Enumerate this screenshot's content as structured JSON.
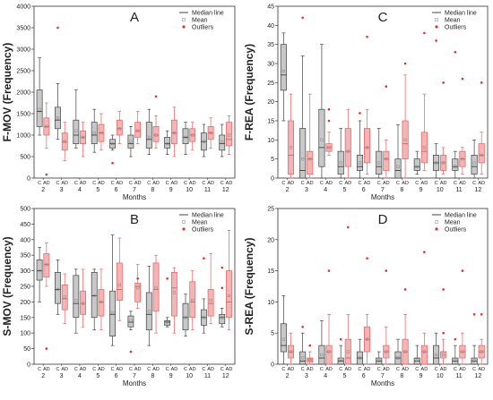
{
  "legend": {
    "median": "Median line",
    "mean": "Mean",
    "outliers": "Outliers"
  },
  "colors": {
    "control_fill": "#c8c8c8",
    "control_stroke": "#404040",
    "ad_fill": "#f2b4b4",
    "ad_stroke": "#e06060",
    "outlier": "#e03030"
  },
  "chart_data": [
    {
      "type": "boxplot",
      "title": "A",
      "ylabel": "F-MOV (Frequency)",
      "xlabel": "Months",
      "ylim": [
        0,
        4000
      ],
      "yticks": [
        0,
        500,
        1000,
        1500,
        2000,
        2500,
        3000,
        3500,
        4000
      ],
      "groups": [
        "C",
        "AD"
      ],
      "categories": [
        "2",
        "3",
        "4",
        "5",
        "6",
        "7",
        "8",
        "9",
        "10",
        "11",
        "12"
      ],
      "boxes": [
        [
          {
            "lw": 1000,
            "q1": 1200,
            "med": 1550,
            "q3": 2050,
            "hw": 2800,
            "mean": 1600
          },
          {
            "lw": 700,
            "q1": 1000,
            "med": 1200,
            "q3": 1400,
            "hw": 1750,
            "mean": 1200,
            "out": [
              80
            ]
          }
        ],
        [
          {
            "lw": 900,
            "q1": 1150,
            "med": 1350,
            "q3": 1650,
            "hw": 2200,
            "mean": 1400,
            "out": [
              3500
            ]
          },
          {
            "lw": 400,
            "q1": 650,
            "med": 850,
            "q3": 1050,
            "hw": 1300,
            "mean": 850
          }
        ],
        [
          {
            "lw": 700,
            "q1": 800,
            "med": 1000,
            "q3": 1350,
            "hw": 2050,
            "mean": 1100
          },
          {
            "lw": 500,
            "q1": 800,
            "med": 950,
            "q3": 1100,
            "hw": 1300,
            "mean": 950
          }
        ],
        [
          {
            "lw": 600,
            "q1": 800,
            "med": 1000,
            "q3": 1300,
            "hw": 1600,
            "mean": 1050
          },
          {
            "lw": 650,
            "q1": 850,
            "med": 1050,
            "q3": 1250,
            "hw": 1500,
            "mean": 1050
          }
        ],
        [
          {
            "lw": 650,
            "q1": 700,
            "med": 800,
            "q3": 900,
            "hw": 1000,
            "mean": 800,
            "out": [
              350
            ]
          },
          {
            "lw": 800,
            "q1": 1000,
            "med": 1150,
            "q3": 1350,
            "hw": 1550,
            "mean": 1150
          }
        ],
        [
          {
            "lw": 500,
            "q1": 700,
            "med": 800,
            "q3": 1000,
            "hw": 1200,
            "mean": 850
          },
          {
            "lw": 800,
            "q1": 950,
            "med": 1100,
            "q3": 1300,
            "hw": 1550,
            "mean": 1100
          }
        ],
        [
          {
            "lw": 550,
            "q1": 700,
            "med": 900,
            "q3": 1300,
            "hw": 1600,
            "mean": 950
          },
          {
            "lw": 700,
            "q1": 850,
            "med": 1000,
            "q3": 1200,
            "hw": 1450,
            "mean": 1000,
            "out": [
              1900
            ]
          }
        ],
        [
          {
            "lw": 550,
            "q1": 700,
            "med": 800,
            "q3": 950,
            "hw": 1100,
            "mean": 800
          },
          {
            "lw": 500,
            "q1": 800,
            "med": 1050,
            "q3": 1350,
            "hw": 1650,
            "mean": 1050
          }
        ],
        [
          {
            "lw": 550,
            "q1": 800,
            "med": 950,
            "q3": 1150,
            "hw": 1300,
            "mean": 950
          },
          {
            "lw": 650,
            "q1": 850,
            "med": 1000,
            "q3": 1150,
            "hw": 1300,
            "mean": 1000
          }
        ],
        [
          {
            "lw": 500,
            "q1": 650,
            "med": 850,
            "q3": 1050,
            "hw": 1250,
            "mean": 850
          },
          {
            "lw": 700,
            "q1": 900,
            "med": 1050,
            "q3": 1200,
            "hw": 1400,
            "mean": 1050
          }
        ],
        [
          {
            "lw": 500,
            "q1": 650,
            "med": 800,
            "q3": 1000,
            "hw": 1250,
            "mean": 850
          },
          {
            "lw": 550,
            "q1": 750,
            "med": 900,
            "q3": 1300,
            "hw": 1450,
            "mean": 1000
          }
        ]
      ]
    },
    {
      "type": "boxplot",
      "title": "C",
      "ylabel": "F-REA (Frequency)",
      "xlabel": "Months",
      "ylim": [
        0,
        45
      ],
      "yticks": [
        0,
        5,
        10,
        15,
        20,
        25,
        30,
        35,
        40,
        45
      ],
      "groups": [
        "C",
        "AD"
      ],
      "categories": [
        "2",
        "3",
        "4",
        "5",
        "6",
        "7",
        "8",
        "9",
        "10",
        "11",
        "12"
      ],
      "boxes": [
        [
          {
            "lw": 15,
            "q1": 23,
            "med": 27,
            "q3": 35,
            "hw": 38,
            "mean": 28
          },
          {
            "lw": 0,
            "q1": 1,
            "med": 6,
            "q3": 15,
            "hw": 22,
            "mean": 8
          }
        ],
        [
          {
            "lw": 0,
            "q1": 0,
            "med": 2,
            "q3": 13,
            "hw": 32,
            "mean": 5,
            "out": [
              42
            ]
          },
          {
            "lw": 0,
            "q1": 1,
            "med": 5,
            "q3": 7,
            "hw": 22,
            "mean": 5
          }
        ],
        [
          {
            "lw": 0,
            "q1": 3,
            "med": 8,
            "q3": 18,
            "hw": 35,
            "mean": 10
          },
          {
            "lw": 6,
            "q1": 7,
            "med": 8,
            "q3": 9,
            "hw": 12,
            "mean": 8,
            "out": [
              15,
              18
            ]
          }
        ],
        [
          {
            "lw": 0,
            "q1": 1,
            "med": 3,
            "q3": 7,
            "hw": 13,
            "mean": 4
          },
          {
            "lw": 0,
            "q1": 3,
            "med": 7,
            "q3": 13,
            "hw": 18,
            "mean": 7
          }
        ],
        [
          {
            "lw": 0,
            "q1": 2,
            "med": 3,
            "q3": 6,
            "hw": 15,
            "mean": 4,
            "out": [
              17
            ]
          },
          {
            "lw": 1,
            "q1": 4,
            "med": 8,
            "q3": 13,
            "hw": 18,
            "mean": 8,
            "out": [
              37
            ]
          }
        ],
        [
          {
            "lw": 0,
            "q1": 1,
            "med": 3,
            "q3": 7,
            "hw": 13,
            "mean": 4
          },
          {
            "lw": 0,
            "q1": 2,
            "med": 5,
            "q3": 7,
            "hw": 10,
            "mean": 5,
            "out": [
              24
            ]
          }
        ],
        [
          {
            "lw": 0,
            "q1": 0,
            "med": 2,
            "q3": 5,
            "hw": 14,
            "mean": 3
          },
          {
            "lw": 0,
            "q1": 5,
            "med": 9,
            "q3": 15,
            "hw": 27,
            "mean": 10,
            "out": [
              30
            ]
          }
        ],
        [
          {
            "lw": 1,
            "q1": 2,
            "med": 3,
            "q3": 5,
            "hw": 7,
            "mean": 3
          },
          {
            "lw": 2,
            "q1": 4,
            "med": 7,
            "q3": 12,
            "hw": 22,
            "mean": 8,
            "out": [
              38
            ]
          }
        ],
        [
          {
            "lw": 0,
            "q1": 2,
            "med": 4,
            "q3": 6,
            "hw": 9,
            "mean": 4,
            "out": [
              36
            ]
          },
          {
            "lw": 1,
            "q1": 2,
            "med": 4,
            "q3": 6,
            "hw": 8,
            "mean": 4,
            "out": [
              25
            ]
          }
        ],
        [
          {
            "lw": 0,
            "q1": 2,
            "med": 3,
            "q3": 5,
            "hw": 7,
            "mean": 3,
            "out": [
              33
            ]
          },
          {
            "lw": 1,
            "q1": 3,
            "med": 5,
            "q3": 7,
            "hw": 8,
            "mean": 5,
            "out": [
              26
            ]
          }
        ],
        [
          {
            "lw": 0,
            "q1": 1,
            "med": 3,
            "q3": 6,
            "hw": 10,
            "mean": 4
          },
          {
            "lw": 1,
            "q1": 4,
            "med": 6,
            "q3": 9,
            "hw": 12,
            "mean": 6,
            "out": [
              25
            ]
          }
        ]
      ]
    },
    {
      "type": "boxplot",
      "title": "B",
      "ylabel": "S-MOV (Frequency)",
      "xlabel": "Months",
      "ylim": [
        0,
        500
      ],
      "yticks": [
        0,
        50,
        100,
        150,
        200,
        250,
        300,
        350,
        400,
        450,
        500
      ],
      "groups": [
        "C",
        "AD"
      ],
      "categories": [
        "2",
        "3",
        "4",
        "5",
        "6",
        "7",
        "8",
        "9",
        "10",
        "11",
        "12"
      ],
      "boxes": [
        [
          {
            "lw": 200,
            "q1": 270,
            "med": 300,
            "q3": 335,
            "hw": 375,
            "mean": 300
          },
          {
            "lw": 250,
            "q1": 280,
            "med": 320,
            "q3": 355,
            "hw": 390,
            "mean": 320,
            "out": [
              50
            ]
          }
        ],
        [
          {
            "lw": 160,
            "q1": 195,
            "med": 240,
            "q3": 295,
            "hw": 335,
            "mean": 240
          },
          {
            "lw": 130,
            "q1": 175,
            "med": 210,
            "q3": 255,
            "hw": 290,
            "mean": 215
          }
        ],
        [
          {
            "lw": 100,
            "q1": 150,
            "med": 195,
            "q3": 285,
            "hw": 305,
            "mean": 205
          },
          {
            "lw": 120,
            "q1": 160,
            "med": 195,
            "q3": 235,
            "hw": 305,
            "mean": 195
          }
        ],
        [
          {
            "lw": 110,
            "q1": 150,
            "med": 220,
            "q3": 295,
            "hw": 305,
            "mean": 220
          },
          {
            "lw": 110,
            "q1": 155,
            "med": 200,
            "q3": 240,
            "hw": 305,
            "mean": 200
          }
        ],
        [
          {
            "lw": 60,
            "q1": 90,
            "med": 160,
            "q3": 235,
            "hw": 415,
            "mean": 165
          },
          {
            "lw": 140,
            "q1": 205,
            "med": 240,
            "q3": 325,
            "hw": 405,
            "mean": 255
          }
        ],
        [
          {
            "lw": 110,
            "q1": 120,
            "med": 135,
            "q3": 155,
            "hw": 170,
            "mean": 140,
            "out": [
              40
            ]
          },
          {
            "lw": 180,
            "q1": 200,
            "med": 250,
            "q3": 260,
            "hw": 320,
            "mean": 245,
            "out": [
              275
            ]
          }
        ],
        [
          {
            "lw": 60,
            "q1": 110,
            "med": 160,
            "q3": 230,
            "hw": 315,
            "mean": 170
          },
          {
            "lw": 100,
            "q1": 170,
            "med": 240,
            "q3": 325,
            "hw": 350,
            "mean": 245
          }
        ],
        [
          {
            "lw": 120,
            "q1": 125,
            "med": 135,
            "q3": 140,
            "hw": 150,
            "mean": 135,
            "out": [
              275
            ]
          },
          {
            "lw": 100,
            "q1": 155,
            "med": 245,
            "q3": 295,
            "hw": 310,
            "mean": 230
          }
        ],
        [
          {
            "lw": 90,
            "q1": 110,
            "med": 150,
            "q3": 195,
            "hw": 225,
            "mean": 150
          },
          {
            "lw": 110,
            "q1": 150,
            "med": 200,
            "q3": 265,
            "hw": 300,
            "mean": 205
          }
        ],
        [
          {
            "lw": 100,
            "q1": 125,
            "med": 150,
            "q3": 175,
            "hw": 210,
            "mean": 150,
            "out": [
              340
            ]
          },
          {
            "lw": 130,
            "q1": 155,
            "med": 195,
            "q3": 240,
            "hw": 355,
            "mean": 205
          }
        ],
        [
          {
            "lw": 120,
            "q1": 130,
            "med": 150,
            "q3": 160,
            "hw": 180,
            "mean": 150,
            "out": [
              245,
              310
            ]
          },
          {
            "lw": 110,
            "q1": 150,
            "med": 200,
            "q3": 300,
            "hw": 430,
            "mean": 220
          }
        ]
      ]
    },
    {
      "type": "boxplot",
      "title": "D",
      "ylabel": "S-REA (Frequency)",
      "xlabel": "Months",
      "ylim": [
        0,
        25
      ],
      "yticks": [
        0,
        5,
        10,
        15,
        20,
        25
      ],
      "groups": [
        "C",
        "AD"
      ],
      "categories": [
        "2",
        "3",
        "4",
        "5",
        "6",
        "7",
        "8",
        "9",
        "10",
        "11",
        "12"
      ],
      "boxes": [
        [
          {
            "lw": 0,
            "q1": 2,
            "med": 3,
            "q3": 6.5,
            "hw": 11,
            "mean": 4
          },
          {
            "lw": 0,
            "q1": 1,
            "med": 2,
            "q3": 3,
            "hw": 5,
            "mean": 2
          }
        ],
        [
          {
            "lw": 0,
            "q1": 0,
            "med": 0.5,
            "q3": 2,
            "hw": 5,
            "mean": 1,
            "out": [
              6
            ]
          },
          {
            "lw": 0,
            "q1": 0.3,
            "med": 0.7,
            "q3": 1,
            "hw": 2,
            "mean": 0.7,
            "out": [
              3
            ]
          }
        ],
        [
          {
            "lw": 0,
            "q1": 0,
            "med": 1,
            "q3": 3,
            "hw": 7,
            "mean": 1.5
          },
          {
            "lw": 0,
            "q1": 0,
            "med": 2,
            "q3": 3,
            "hw": 8,
            "mean": 2,
            "out": [
              15
            ]
          }
        ],
        [
          {
            "lw": 0,
            "q1": 0,
            "med": 0.5,
            "q3": 1,
            "hw": 3,
            "mean": 0.8,
            "out": [
              4
            ]
          },
          {
            "lw": 0,
            "q1": 0,
            "med": 1,
            "q3": 4,
            "hw": 8,
            "mean": 2,
            "out": [
              22
            ]
          }
        ],
        [
          {
            "lw": 0,
            "q1": 0,
            "med": 1,
            "q3": 2,
            "hw": 4,
            "mean": 1
          },
          {
            "lw": 0,
            "q1": 2,
            "med": 4,
            "q3": 6,
            "hw": 8,
            "mean": 4,
            "out": [
              17
            ]
          }
        ],
        [
          {
            "lw": 0,
            "q1": 0,
            "med": 0.5,
            "q3": 1,
            "hw": 2,
            "mean": 0.6
          },
          {
            "lw": 0,
            "q1": 1,
            "med": 2,
            "q3": 3,
            "hw": 6,
            "mean": 2,
            "out": [
              15
            ]
          }
        ],
        [
          {
            "lw": 0,
            "q1": 0,
            "med": 1,
            "q3": 2,
            "hw": 4,
            "mean": 1
          },
          {
            "lw": 0,
            "q1": 0,
            "med": 2,
            "q3": 4,
            "hw": 8,
            "mean": 2,
            "out": [
              12
            ]
          }
        ],
        [
          {
            "lw": 0,
            "q1": 0,
            "med": 0.5,
            "q3": 1,
            "hw": 3,
            "mean": 0.7
          },
          {
            "lw": 0,
            "q1": 0,
            "med": 2,
            "q3": 3,
            "hw": 5,
            "mean": 2,
            "out": [
              18
            ]
          }
        ],
        [
          {
            "lw": 0,
            "q1": 0,
            "med": 1,
            "q3": 3,
            "hw": 5,
            "mean": 1.5
          },
          {
            "lw": 0,
            "q1": 1,
            "med": 2,
            "q3": 2,
            "hw": 4,
            "mean": 1.5,
            "out": [
              12,
              5
            ]
          }
        ],
        [
          {
            "lw": 0,
            "q1": 0,
            "med": 0.5,
            "q3": 1,
            "hw": 3,
            "mean": 0.6,
            "out": [
              4
            ]
          },
          {
            "lw": 0,
            "q1": 1,
            "med": 2,
            "q3": 3,
            "hw": 5,
            "mean": 2,
            "out": [
              15
            ]
          }
        ],
        [
          {
            "lw": 0,
            "q1": 0,
            "med": 0.5,
            "q3": 1,
            "hw": 3,
            "mean": 0.6,
            "out": [
              8
            ]
          },
          {
            "lw": 0,
            "q1": 1,
            "med": 2,
            "q3": 3,
            "hw": 4,
            "mean": 2,
            "out": [
              8
            ]
          }
        ]
      ]
    }
  ]
}
